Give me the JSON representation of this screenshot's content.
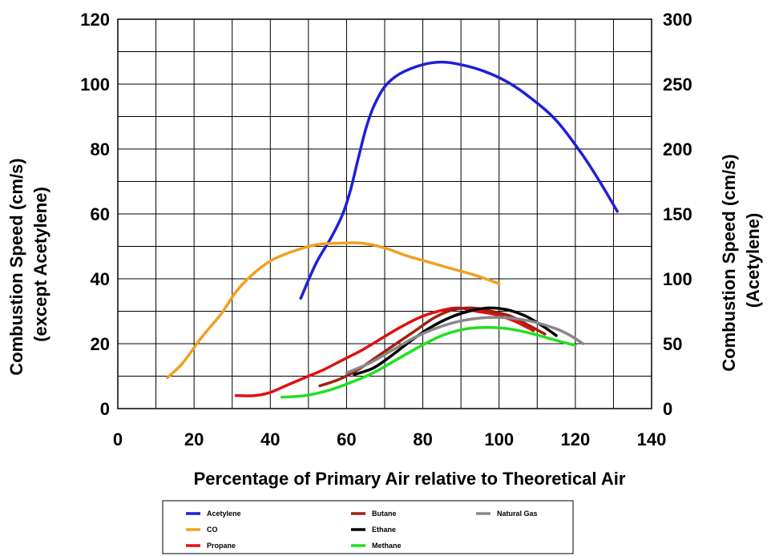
{
  "chart_data": {
    "type": "line",
    "xlabel": "Percentage of Primary Air relative to Theoretical Air",
    "ylabel_left": [
      "Combustion Speed (cm/s)",
      "(except Acetylene)"
    ],
    "ylabel_right": [
      "Combustion Speed (cm/s)",
      "(Acetylene)"
    ],
    "xlim": [
      0,
      140
    ],
    "ylim_left": [
      0,
      120
    ],
    "ylim_right": [
      0,
      300
    ],
    "x_ticks": [
      "0",
      "20",
      "40",
      "60",
      "80",
      "100",
      "120",
      "140"
    ],
    "y_ticks_left": [
      "0",
      "20",
      "40",
      "60",
      "80",
      "100",
      "120"
    ],
    "y_ticks_right": [
      "0",
      "50",
      "100",
      "150",
      "200",
      "250",
      "300"
    ],
    "grid": true,
    "legend_position": "bottom",
    "series": [
      {
        "name": "Acetylene",
        "axis": "right",
        "color": "#1f1fd6",
        "points": [
          [
            48,
            85
          ],
          [
            52,
            112
          ],
          [
            56,
            132
          ],
          [
            59,
            150
          ],
          [
            61,
            168
          ],
          [
            63,
            192
          ],
          [
            65,
            215
          ],
          [
            67,
            232
          ],
          [
            70,
            248
          ],
          [
            74,
            258
          ],
          [
            80,
            265
          ],
          [
            85,
            267
          ],
          [
            90,
            265
          ],
          [
            96,
            260
          ],
          [
            102,
            252
          ],
          [
            108,
            240
          ],
          [
            115,
            222
          ],
          [
            122,
            195
          ],
          [
            127,
            172
          ],
          [
            131,
            152
          ]
        ]
      },
      {
        "name": "CO",
        "axis": "left",
        "color": "#f0a020",
        "points": [
          [
            13,
            9.5
          ],
          [
            17,
            14
          ],
          [
            22,
            22
          ],
          [
            27,
            29
          ],
          [
            31,
            36
          ],
          [
            35,
            41
          ],
          [
            40,
            45.5
          ],
          [
            46,
            48.5
          ],
          [
            52,
            50.5
          ],
          [
            58,
            51
          ],
          [
            64,
            51
          ],
          [
            70,
            49.5
          ],
          [
            76,
            47
          ],
          [
            82,
            45
          ],
          [
            88,
            43
          ],
          [
            94,
            41
          ],
          [
            100,
            38.5
          ]
        ]
      },
      {
        "name": "Propane",
        "axis": "left",
        "color": "#e01010",
        "points": [
          [
            31,
            4
          ],
          [
            36,
            4
          ],
          [
            40,
            5
          ],
          [
            44,
            7
          ],
          [
            49,
            9.5
          ],
          [
            54,
            12
          ],
          [
            59,
            15
          ],
          [
            64,
            18
          ],
          [
            69,
            21.5
          ],
          [
            74,
            25
          ],
          [
            79,
            28
          ],
          [
            84,
            30
          ],
          [
            89,
            31
          ],
          [
            94,
            30
          ],
          [
            99,
            29
          ],
          [
            104,
            27
          ],
          [
            109,
            24
          ]
        ]
      },
      {
        "name": "Butane",
        "axis": "left",
        "color": "#a02010",
        "points": [
          [
            53,
            7
          ],
          [
            58,
            9
          ],
          [
            63,
            12
          ],
          [
            68,
            16
          ],
          [
            73,
            20
          ],
          [
            78,
            24
          ],
          [
            83,
            28
          ],
          [
            88,
            30.5
          ],
          [
            93,
            31
          ],
          [
            98,
            30
          ],
          [
            103,
            28.5
          ],
          [
            108,
            25.5
          ],
          [
            112,
            23
          ]
        ]
      },
      {
        "name": "Ethane",
        "axis": "left",
        "color": "#000000",
        "points": [
          [
            62,
            10.5
          ],
          [
            67,
            12.5
          ],
          [
            72,
            16.5
          ],
          [
            77,
            21
          ],
          [
            82,
            25
          ],
          [
            87,
            28
          ],
          [
            92,
            30
          ],
          [
            97,
            31
          ],
          [
            102,
            30.5
          ],
          [
            107,
            28.5
          ],
          [
            112,
            25
          ],
          [
            115,
            22.5
          ]
        ]
      },
      {
        "name": "Methane",
        "axis": "left",
        "color": "#20e020",
        "points": [
          [
            43,
            3.5
          ],
          [
            49,
            4
          ],
          [
            55,
            5.5
          ],
          [
            61,
            8
          ],
          [
            67,
            11
          ],
          [
            73,
            15
          ],
          [
            79,
            19
          ],
          [
            85,
            22.5
          ],
          [
            91,
            24.5
          ],
          [
            97,
            25
          ],
          [
            103,
            24.5
          ],
          [
            109,
            23
          ],
          [
            115,
            21
          ],
          [
            120,
            19.5
          ]
        ]
      },
      {
        "name": "Natural Gas",
        "axis": "left",
        "color": "#888888",
        "points": [
          [
            60,
            11
          ],
          [
            66,
            14
          ],
          [
            72,
            18
          ],
          [
            78,
            22
          ],
          [
            84,
            25
          ],
          [
            90,
            27
          ],
          [
            96,
            28
          ],
          [
            102,
            28
          ],
          [
            108,
            27
          ],
          [
            114,
            25
          ],
          [
            118,
            23
          ],
          [
            122,
            20
          ]
        ]
      }
    ]
  }
}
